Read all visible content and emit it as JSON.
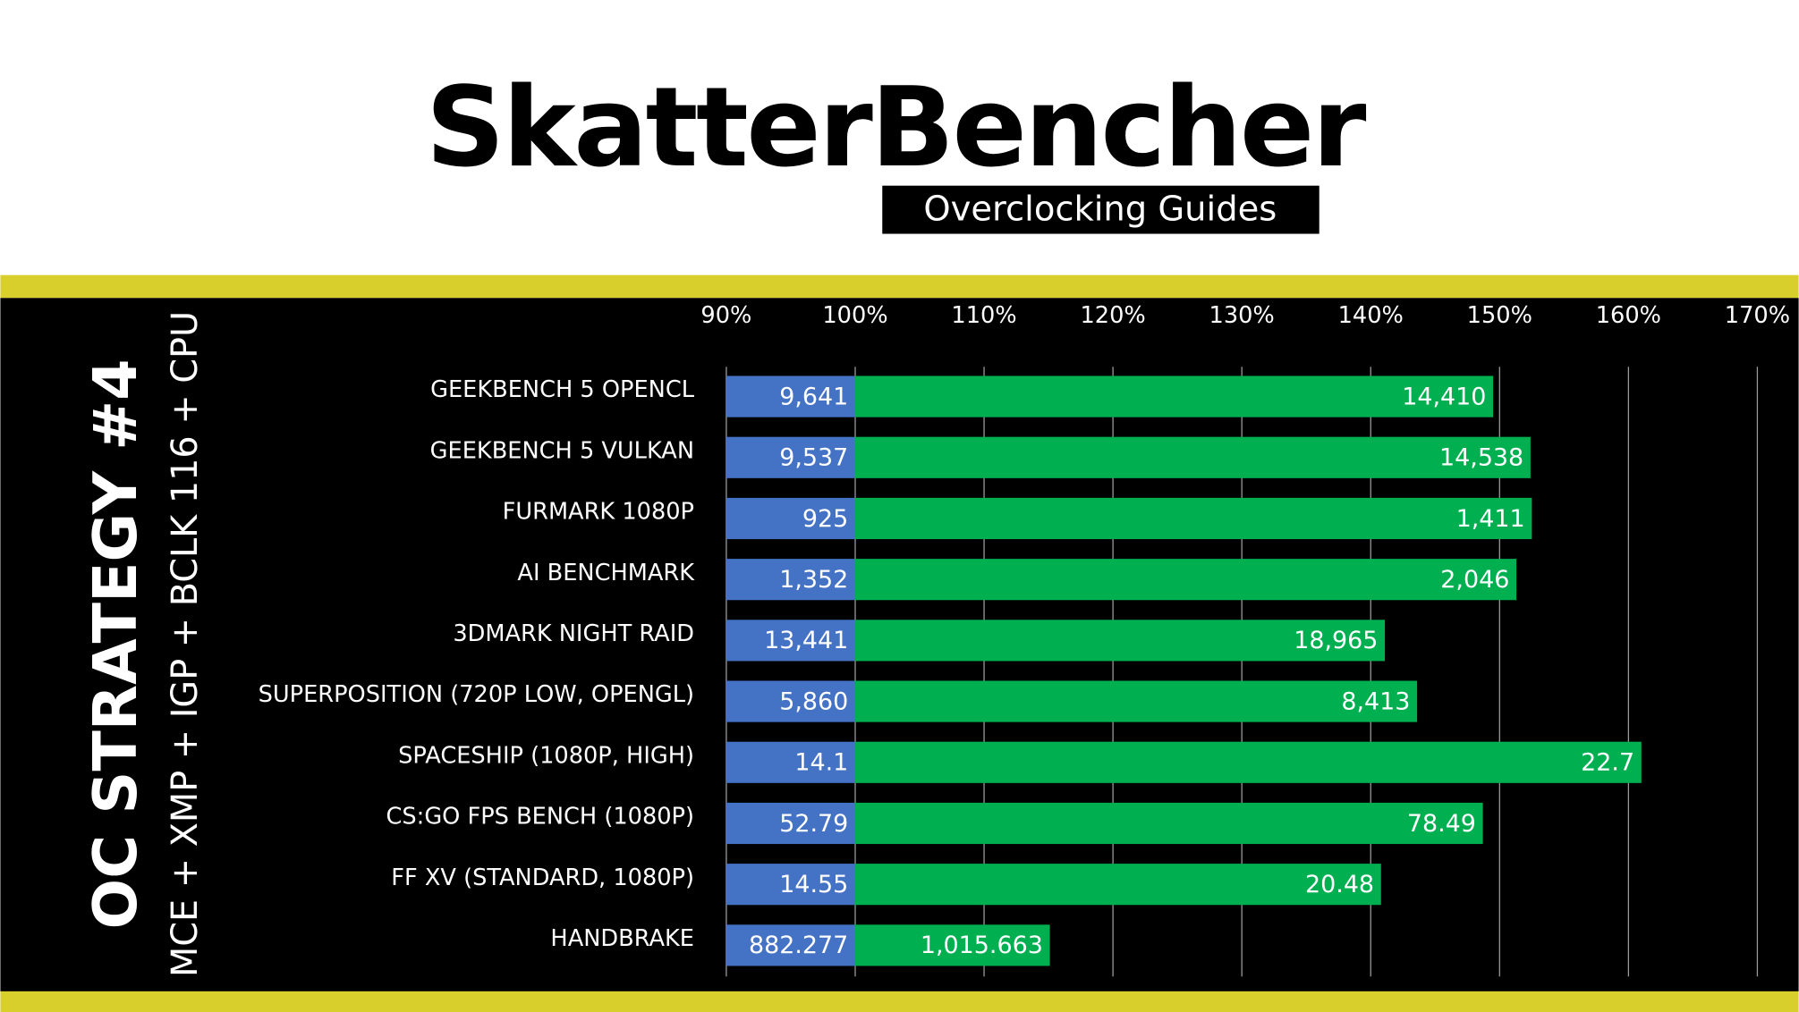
{
  "chart_data": {
    "type": "bar",
    "title": "SkatterBencher",
    "subtitle": "Overclocking Guides",
    "side_title": "OC STRATEGY #4",
    "side_subtitle": "MCE + XMP + IGP + BCLK 116 + CPU",
    "categories": [
      "GEEKBENCH 5 OPENCL",
      "GEEKBENCH 5 VULKAN",
      "FURMARK 1080P",
      "AI BENCHMARK",
      "3DMARK NIGHT RAID",
      "SUPERPOSITION (720P LOW, OPENGL)",
      "SPACESHIP (1080P, HIGH)",
      "CS:GO FPS BENCH (1080P)",
      "FF XV (STANDARD, 1080P)",
      "HANDBRAKE"
    ],
    "series": [
      {
        "color": "#4472c4",
        "values": [
          100,
          100,
          100,
          100,
          100,
          100,
          100,
          100,
          100,
          100
        ],
        "scores": [
          "9,641",
          "9,537",
          "925",
          "1,352",
          "13,441",
          "5,860",
          "14.1",
          "52.79",
          "14.55",
          "882.277"
        ]
      },
      {
        "color": "#00b050",
        "values": [
          149.5,
          152.4,
          152.5,
          151.3,
          141.1,
          143.6,
          161.0,
          148.7,
          140.8,
          115.1
        ],
        "scores": [
          "14,410",
          "14,538",
          "1,411",
          "2,046",
          "18,965",
          "8,413",
          "22.7",
          "78.49",
          "20.48",
          "1,015.663"
        ]
      }
    ],
    "xlim": [
      90,
      170
    ],
    "xticks": [
      {
        "value": 90,
        "label": "90%"
      },
      {
        "value": 100,
        "label": "100%"
      },
      {
        "value": 110,
        "label": "110%"
      },
      {
        "value": 120,
        "label": "120%"
      },
      {
        "value": 130,
        "label": "130%"
      },
      {
        "value": 140,
        "label": "140%"
      },
      {
        "value": 150,
        "label": "150%"
      },
      {
        "value": 160,
        "label": "160%"
      },
      {
        "value": 170,
        "label": "170%"
      }
    ],
    "grid": true
  }
}
